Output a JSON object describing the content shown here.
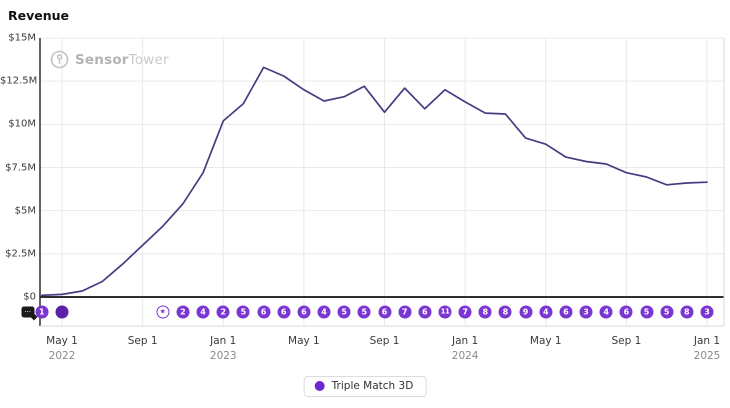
{
  "page": {
    "title": "Revenue"
  },
  "watermark": {
    "brand_bold": "Sensor",
    "brand_light": "Tower"
  },
  "chart_data": {
    "type": "line",
    "title": "Revenue",
    "unit": "USD, millions",
    "grid": true,
    "legend_position": "bottom-center",
    "ylim": [
      0,
      15
    ],
    "yticks": {
      "labels": [
        "$15M",
        "$12.5M",
        "$10M",
        "$7.5M",
        "$5M",
        "$2.5M",
        "$0"
      ],
      "values": [
        15,
        12.5,
        10,
        7.5,
        5,
        2.5,
        0
      ]
    },
    "x": [
      "Apr 2022",
      "May 2022",
      "Jun 2022",
      "Jul 2022",
      "Aug 2022",
      "Sep 2022",
      "Oct 2022",
      "Nov 2022",
      "Dec 2022",
      "Jan 2023",
      "Feb 2023",
      "Mar 2023",
      "Apr 2023",
      "May 2023",
      "Jun 2023",
      "Jul 2023",
      "Aug 2023",
      "Sep 2023",
      "Oct 2023",
      "Nov 2023",
      "Dec 2023",
      "Jan 2024",
      "Feb 2024",
      "Mar 2024",
      "Apr 2024",
      "May 2024",
      "Jun 2024",
      "Jul 2024",
      "Aug 2024",
      "Sep 2024",
      "Oct 2024",
      "Nov 2024",
      "Dec 2024",
      "Jan 2025"
    ],
    "xticks": [
      {
        "label": "May 1",
        "year": "2022",
        "index": 1
      },
      {
        "label": "Sep 1",
        "year": "",
        "index": 5
      },
      {
        "label": "Jan 1",
        "year": "2023",
        "index": 9
      },
      {
        "label": "May 1",
        "year": "",
        "index": 13
      },
      {
        "label": "Sep 1",
        "year": "",
        "index": 17
      },
      {
        "label": "Jan 1",
        "year": "2024",
        "index": 21
      },
      {
        "label": "May 1",
        "year": "",
        "index": 25
      },
      {
        "label": "Sep 1",
        "year": "",
        "index": 29
      },
      {
        "label": "Jan 1",
        "year": "2025",
        "index": 33
      }
    ],
    "series": [
      {
        "name": "Triple Match 3D",
        "color": "#4a3a82",
        "values": [
          0.1,
          0.15,
          0.35,
          0.9,
          1.9,
          3.0,
          4.1,
          5.4,
          7.2,
          10.2,
          11.2,
          13.3,
          12.8,
          12.0,
          11.35,
          11.6,
          12.2,
          10.7,
          12.1,
          10.9,
          12.0,
          11.3,
          10.65,
          10.6,
          9.2,
          8.85,
          8.1,
          7.85,
          7.7,
          7.2,
          6.95,
          6.5,
          6.6,
          6.65
        ]
      }
    ]
  },
  "update_markers": {
    "color": "#7a35d2",
    "items": [
      {
        "type": "note",
        "label": "",
        "index": -0.7
      },
      {
        "type": "circle",
        "label": "1",
        "index": 0
      },
      {
        "type": "dot",
        "label": "",
        "index": 1
      },
      {
        "type": "star",
        "label": "★",
        "index": 6
      },
      {
        "type": "circle",
        "label": "2",
        "index": 7
      },
      {
        "type": "circle",
        "label": "4",
        "index": 8
      },
      {
        "type": "circle",
        "label": "2",
        "index": 9
      },
      {
        "type": "circle",
        "label": "5",
        "index": 10
      },
      {
        "type": "circle",
        "label": "6",
        "index": 11
      },
      {
        "type": "circle",
        "label": "6",
        "index": 12
      },
      {
        "type": "circle",
        "label": "6",
        "index": 13
      },
      {
        "type": "circle",
        "label": "4",
        "index": 14
      },
      {
        "type": "circle",
        "label": "5",
        "index": 15
      },
      {
        "type": "circle",
        "label": "5",
        "index": 16
      },
      {
        "type": "circle",
        "label": "6",
        "index": 17
      },
      {
        "type": "circle",
        "label": "7",
        "index": 18
      },
      {
        "type": "circle",
        "label": "6",
        "index": 19
      },
      {
        "type": "circle",
        "label": "11",
        "index": 20
      },
      {
        "type": "circle",
        "label": "7",
        "index": 21
      },
      {
        "type": "circle",
        "label": "8",
        "index": 22
      },
      {
        "type": "circle",
        "label": "8",
        "index": 23
      },
      {
        "type": "circle",
        "label": "9",
        "index": 24
      },
      {
        "type": "circle",
        "label": "4",
        "index": 25
      },
      {
        "type": "circle",
        "label": "6",
        "index": 26
      },
      {
        "type": "circle",
        "label": "3",
        "index": 27
      },
      {
        "type": "circle",
        "label": "4",
        "index": 28
      },
      {
        "type": "circle",
        "label": "6",
        "index": 29
      },
      {
        "type": "circle",
        "label": "5",
        "index": 30
      },
      {
        "type": "circle",
        "label": "5",
        "index": 31
      },
      {
        "type": "circle",
        "label": "8",
        "index": 32
      },
      {
        "type": "circle",
        "label": "3",
        "index": 33
      }
    ]
  },
  "legend": {
    "label": "Triple Match 3D",
    "dot_color": "#6d28cf"
  },
  "colors": {
    "line": "#4a3a82",
    "marker": "#7a35d2",
    "grid": "#e9e9e9",
    "axis": "#2e2e2e",
    "strip_border": "#d9d9d9"
  }
}
